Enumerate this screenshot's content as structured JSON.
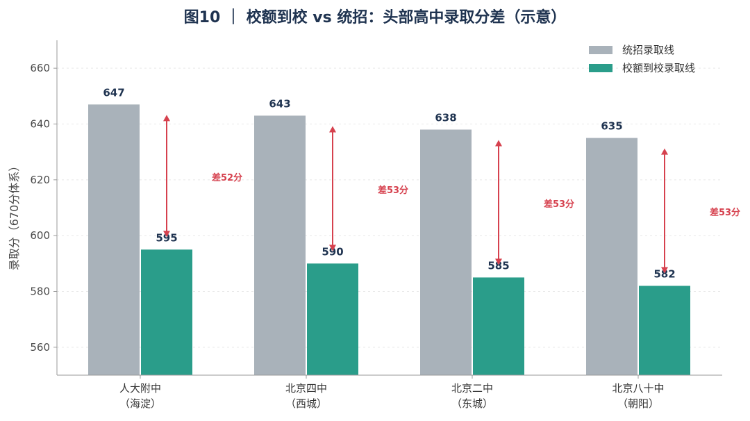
{
  "chart_data": {
    "type": "bar",
    "title": "图10 ｜ 校额到校 vs 统招：头部高中录取分差（示意）",
    "ylabel": "录取分（670分体系）",
    "xlabel": "",
    "ylim": [
      550,
      670
    ],
    "yticks": [
      560,
      580,
      600,
      620,
      640,
      660
    ],
    "grid": true,
    "legend_position": "top-right",
    "categories": [
      [
        "人大附中",
        "（海淀）"
      ],
      [
        "北京四中",
        "（西城）"
      ],
      [
        "北京二中",
        "（东城）"
      ],
      [
        "北京八十中",
        "（朝阳）"
      ]
    ],
    "series": [
      {
        "name": "统招录取线",
        "color": "#a9b2ba",
        "values": [
          647,
          643,
          638,
          635
        ]
      },
      {
        "name": "校额到校录取线",
        "color": "#2a9d8a",
        "values": [
          595,
          590,
          585,
          582
        ]
      }
    ],
    "annotations": [
      "差52分",
      "差53分",
      "差53分",
      "差53分"
    ],
    "annotation_color": "#d6414e"
  }
}
